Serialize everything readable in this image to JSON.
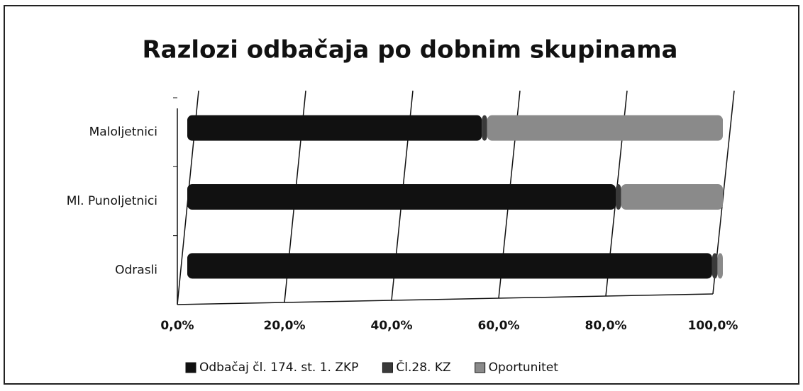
{
  "chart_data": {
    "type": "stacked-bar-horizontal",
    "title": "Razlozi odbačaja po dobnim skupinama",
    "categories": [
      "Maloljetnici",
      "Ml. Punoljetnici",
      "Odrasli"
    ],
    "series": [
      {
        "name": "Odbačaj čl. 174. st. 1. ZKP",
        "color": "#111111",
        "values": [
          55,
          80,
          98
        ]
      },
      {
        "name": "Čl.28. KZ",
        "color": "#3a3a3a",
        "values": [
          1,
          1,
          1
        ]
      },
      {
        "name": "Oportunitet",
        "color": "#8a8a8a",
        "values": [
          44,
          19,
          1
        ]
      }
    ],
    "xlim": [
      0,
      100
    ],
    "xticks": [
      {
        "value": 0,
        "label": "0,0%"
      },
      {
        "value": 20,
        "label": "20,0%"
      },
      {
        "value": 40,
        "label": "40,0%"
      },
      {
        "value": 60,
        "label": "60,0%"
      },
      {
        "value": 80,
        "label": "80,0%"
      },
      {
        "value": 100,
        "label": "100,0%"
      }
    ],
    "grid": true,
    "legend": "bottom"
  }
}
